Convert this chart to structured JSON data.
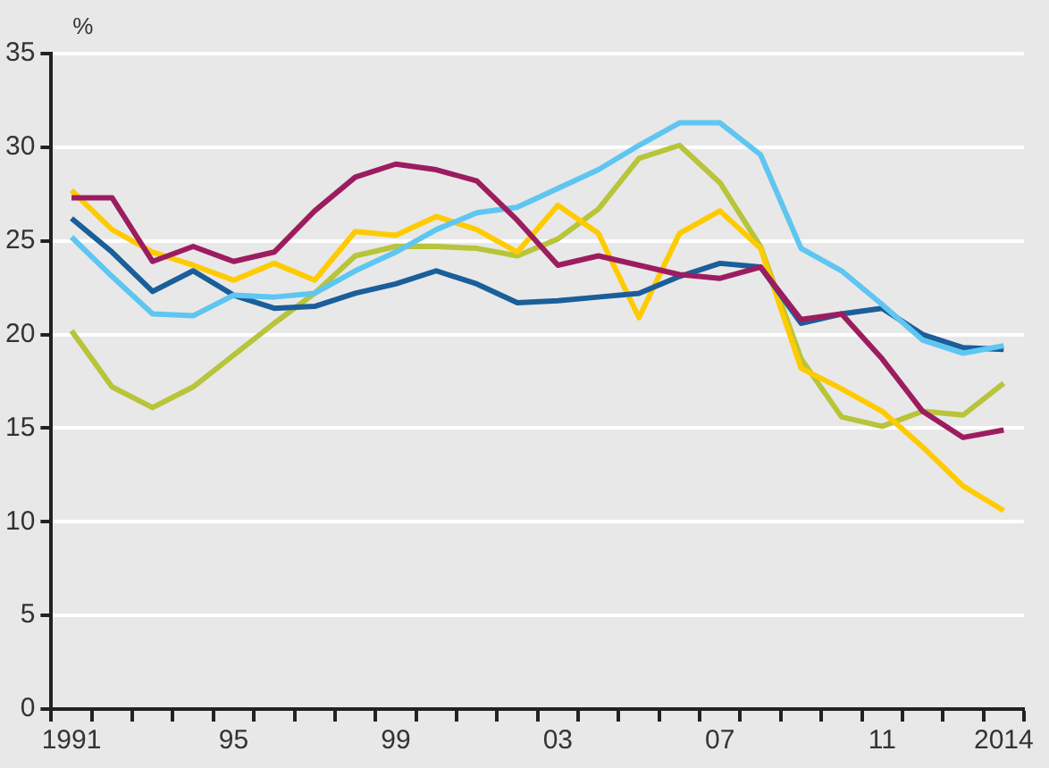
{
  "chart_data": {
    "type": "line",
    "ylabel": "%",
    "categories": [
      "1991",
      null,
      null,
      null,
      "95",
      null,
      null,
      null,
      "99",
      null,
      null,
      null,
      "03",
      null,
      null,
      null,
      "07",
      null,
      null,
      null,
      "11",
      null,
      null,
      "2014"
    ],
    "series": [
      {
        "color": "#9c1d5f",
        "values": [
          27.3,
          27.3,
          23.9,
          24.7,
          23.9,
          24.4,
          26.6,
          28.4,
          29.1,
          28.8,
          28.2,
          26.1,
          23.7,
          24.2,
          23.7,
          23.2,
          23.0,
          23.6,
          20.8,
          21.1,
          18.7,
          15.9,
          14.5,
          14.9
        ]
      },
      {
        "color": "#5ec6f0",
        "values": [
          25.2,
          23.1,
          21.1,
          21.0,
          22.1,
          22.0,
          22.2,
          23.4,
          24.4,
          25.6,
          26.5,
          26.8,
          27.8,
          28.8,
          30.1,
          31.3,
          31.3,
          29.6,
          24.6,
          23.4,
          21.6,
          19.7,
          19.0,
          19.4
        ]
      },
      {
        "color": "#1a5e9a",
        "values": [
          26.2,
          24.4,
          22.3,
          23.4,
          22.1,
          21.4,
          21.5,
          22.2,
          22.7,
          23.4,
          22.7,
          21.7,
          21.8,
          22.0,
          22.2,
          23.1,
          23.8,
          23.6,
          20.6,
          21.1,
          21.4,
          20.0,
          19.3,
          19.2
        ]
      },
      {
        "color": "#fecb00",
        "values": [
          27.7,
          25.6,
          24.4,
          23.7,
          22.9,
          23.8,
          22.9,
          25.5,
          25.3,
          26.3,
          25.6,
          24.4,
          26.9,
          25.4,
          20.9,
          25.4,
          26.6,
          24.6,
          18.2,
          17.1,
          15.9,
          14.0,
          11.9,
          10.6
        ]
      },
      {
        "color": "#b8c43a",
        "values": [
          20.2,
          17.2,
          16.1,
          17.2,
          18.9,
          20.6,
          22.2,
          24.2,
          24.7,
          24.7,
          24.6,
          24.2,
          25.1,
          26.7,
          29.4,
          30.1,
          28.1,
          24.7,
          18.7,
          15.6,
          15.1,
          15.9,
          15.7,
          17.4
        ]
      }
    ],
    "ylim": [
      0,
      35
    ],
    "yticks": [
      0,
      5,
      10,
      15,
      20,
      25,
      30,
      35
    ],
    "grid": "y",
    "legend": false,
    "line_style": "solid",
    "marker": "none"
  }
}
